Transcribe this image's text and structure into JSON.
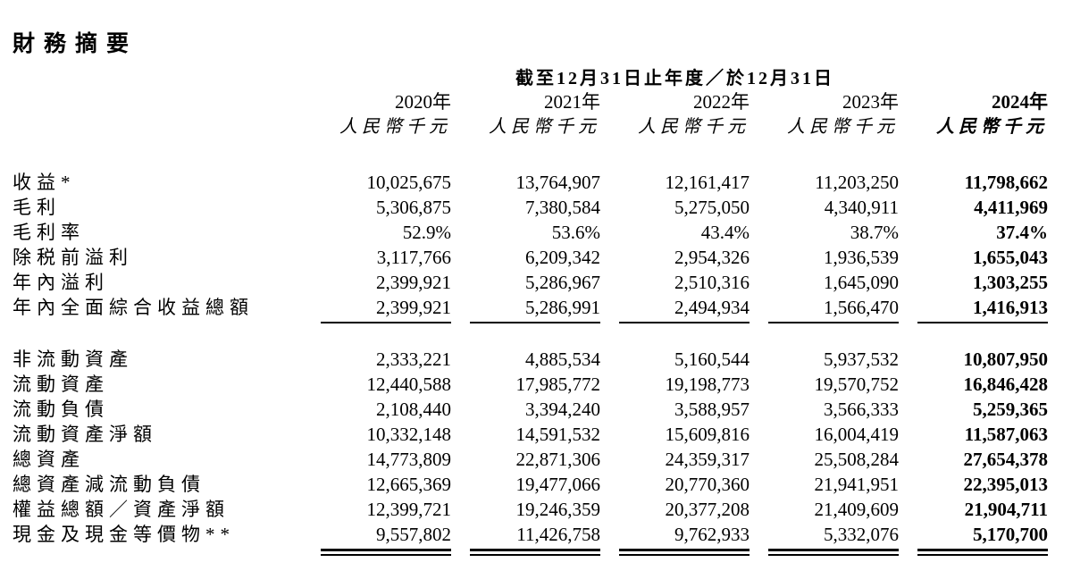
{
  "title": "財務摘要",
  "table": {
    "period_header": "截至12月31日止年度／於12月31日",
    "columns": [
      {
        "year": "2020年",
        "unit": "人民幣千元",
        "emphasis": false
      },
      {
        "year": "2021年",
        "unit": "人民幣千元",
        "emphasis": false
      },
      {
        "year": "2022年",
        "unit": "人民幣千元",
        "emphasis": false
      },
      {
        "year": "2023年",
        "unit": "人民幣千元",
        "emphasis": false
      },
      {
        "year": "2024年",
        "unit": "人民幣千元",
        "emphasis": true
      }
    ],
    "sections": [
      {
        "end_rule": "single",
        "rows": [
          {
            "label": "收益*",
            "values": [
              "10,025,675",
              "13,764,907",
              "12,161,417",
              "11,203,250",
              "11,798,662"
            ]
          },
          {
            "label": "毛利",
            "values": [
              "5,306,875",
              "7,380,584",
              "5,275,050",
              "4,340,911",
              "4,411,969"
            ]
          },
          {
            "label": "毛利率",
            "values": [
              "52.9%",
              "53.6%",
              "43.4%",
              "38.7%",
              "37.4%"
            ]
          },
          {
            "label": "除税前溢利",
            "values": [
              "3,117,766",
              "6,209,342",
              "2,954,326",
              "1,936,539",
              "1,655,043"
            ]
          },
          {
            "label": "年內溢利",
            "values": [
              "2,399,921",
              "5,286,967",
              "2,510,316",
              "1,645,090",
              "1,303,255"
            ]
          },
          {
            "label": "年內全面綜合收益總額",
            "values": [
              "2,399,921",
              "5,286,991",
              "2,494,934",
              "1,566,470",
              "1,416,913"
            ]
          }
        ]
      },
      {
        "end_rule": "double",
        "rows": [
          {
            "label": "非流動資產",
            "values": [
              "2,333,221",
              "4,885,534",
              "5,160,544",
              "5,937,532",
              "10,807,950"
            ]
          },
          {
            "label": "流動資產",
            "values": [
              "12,440,588",
              "17,985,772",
              "19,198,773",
              "19,570,752",
              "16,846,428"
            ]
          },
          {
            "label": "流動負債",
            "values": [
              "2,108,440",
              "3,394,240",
              "3,588,957",
              "3,566,333",
              "5,259,365"
            ]
          },
          {
            "label": "流動資產淨額",
            "values": [
              "10,332,148",
              "14,591,532",
              "15,609,816",
              "16,004,419",
              "11,587,063"
            ]
          },
          {
            "label": "總資產",
            "values": [
              "14,773,809",
              "22,871,306",
              "24,359,317",
              "25,508,284",
              "27,654,378"
            ]
          },
          {
            "label": "總資產減流動負債",
            "values": [
              "12,665,369",
              "19,477,066",
              "20,770,360",
              "21,941,951",
              "22,395,013"
            ]
          },
          {
            "label": "權益總額／資產淨額",
            "values": [
              "12,399,721",
              "19,246,359",
              "20,377,208",
              "21,409,609",
              "21,904,711"
            ]
          },
          {
            "label": "現金及現金等價物**",
            "values": [
              "9,557,802",
              "11,426,758",
              "9,762,933",
              "5,332,076",
              "5,170,700"
            ]
          }
        ]
      }
    ]
  }
}
